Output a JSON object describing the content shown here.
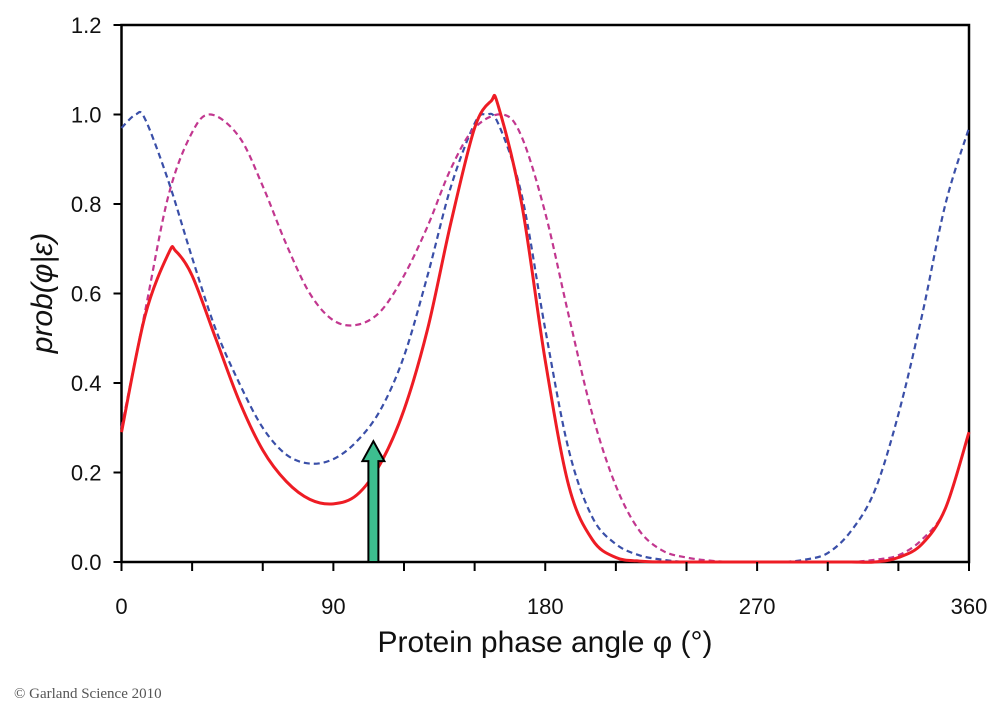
{
  "chart_data": {
    "type": "line",
    "xlabel": "Protein phase angle φ (°)",
    "ylabel": "prob(φ|ε)",
    "xlim": [
      0,
      360
    ],
    "ylim": [
      0,
      1.2
    ],
    "x_ticks": [
      "0",
      "90",
      "180",
      "270",
      "360"
    ],
    "x_minor_step": 30,
    "y_ticks": [
      "0.0",
      "0.2",
      "0.4",
      "0.6",
      "0.8",
      "1.0",
      "1.2"
    ],
    "grid": false,
    "series": [
      {
        "style": "dashed",
        "color": "#3a4fa8",
        "points": [
          [
            0,
            0.97
          ],
          [
            6,
            1.0
          ],
          [
            10,
            0.99
          ],
          [
            20,
            0.85
          ],
          [
            30,
            0.68
          ],
          [
            40,
            0.52
          ],
          [
            50,
            0.4
          ],
          [
            60,
            0.3
          ],
          [
            70,
            0.24
          ],
          [
            80,
            0.22
          ],
          [
            90,
            0.23
          ],
          [
            100,
            0.27
          ],
          [
            110,
            0.34
          ],
          [
            120,
            0.46
          ],
          [
            130,
            0.64
          ],
          [
            140,
            0.84
          ],
          [
            150,
            0.98
          ],
          [
            155,
            1.0
          ],
          [
            160,
            0.98
          ],
          [
            170,
            0.82
          ],
          [
            180,
            0.52
          ],
          [
            190,
            0.25
          ],
          [
            200,
            0.1
          ],
          [
            210,
            0.04
          ],
          [
            220,
            0.015
          ],
          [
            230,
            0.005
          ],
          [
            240,
            0
          ],
          [
            250,
            0
          ],
          [
            260,
            0
          ],
          [
            270,
            0
          ],
          [
            280,
            0
          ],
          [
            290,
            0.005
          ],
          [
            300,
            0.02
          ],
          [
            310,
            0.07
          ],
          [
            320,
            0.16
          ],
          [
            330,
            0.33
          ],
          [
            340,
            0.55
          ],
          [
            350,
            0.8
          ],
          [
            360,
            0.97
          ]
        ]
      },
      {
        "style": "dashed",
        "color": "#c2378f",
        "points": [
          [
            0,
            0.3
          ],
          [
            10,
            0.56
          ],
          [
            20,
            0.82
          ],
          [
            30,
            0.96
          ],
          [
            38,
            1.0
          ],
          [
            50,
            0.95
          ],
          [
            60,
            0.84
          ],
          [
            70,
            0.71
          ],
          [
            80,
            0.6
          ],
          [
            90,
            0.54
          ],
          [
            100,
            0.53
          ],
          [
            110,
            0.56
          ],
          [
            120,
            0.64
          ],
          [
            130,
            0.75
          ],
          [
            140,
            0.88
          ],
          [
            150,
            0.97
          ],
          [
            162,
            1.0
          ],
          [
            170,
            0.95
          ],
          [
            180,
            0.78
          ],
          [
            190,
            0.55
          ],
          [
            200,
            0.33
          ],
          [
            210,
            0.17
          ],
          [
            220,
            0.07
          ],
          [
            230,
            0.025
          ],
          [
            240,
            0.01
          ],
          [
            250,
            0.003
          ],
          [
            260,
            0
          ],
          [
            270,
            0
          ],
          [
            280,
            0
          ],
          [
            290,
            0
          ],
          [
            300,
            0
          ],
          [
            310,
            0
          ],
          [
            320,
            0.005
          ],
          [
            330,
            0.015
          ],
          [
            340,
            0.05
          ],
          [
            350,
            0.12
          ],
          [
            360,
            0.29
          ]
        ]
      },
      {
        "style": "solid",
        "color": "#ee1c24",
        "points": [
          [
            0,
            0.29
          ],
          [
            10,
            0.55
          ],
          [
            20,
            0.69
          ],
          [
            23,
            0.695
          ],
          [
            30,
            0.64
          ],
          [
            40,
            0.5
          ],
          [
            50,
            0.36
          ],
          [
            60,
            0.25
          ],
          [
            70,
            0.18
          ],
          [
            80,
            0.14
          ],
          [
            90,
            0.13
          ],
          [
            100,
            0.15
          ],
          [
            110,
            0.22
          ],
          [
            120,
            0.34
          ],
          [
            130,
            0.52
          ],
          [
            140,
            0.76
          ],
          [
            150,
            0.97
          ],
          [
            157,
            1.03
          ],
          [
            160,
            1.02
          ],
          [
            170,
            0.8
          ],
          [
            180,
            0.45
          ],
          [
            190,
            0.17
          ],
          [
            200,
            0.05
          ],
          [
            210,
            0.01
          ],
          [
            220,
            0.002
          ],
          [
            230,
            0
          ],
          [
            240,
            0
          ],
          [
            250,
            0
          ],
          [
            260,
            0
          ],
          [
            270,
            0
          ],
          [
            280,
            0
          ],
          [
            290,
            0
          ],
          [
            300,
            0
          ],
          [
            310,
            0
          ],
          [
            320,
            0
          ],
          [
            330,
            0.01
          ],
          [
            340,
            0.04
          ],
          [
            350,
            0.12
          ],
          [
            360,
            0.29
          ]
        ]
      }
    ],
    "annotations": [
      {
        "type": "arrow",
        "x": 107,
        "y_from": 0,
        "y_to": 0.27,
        "color": "#3dbf8f"
      }
    ]
  },
  "footer": {
    "copyright": "© Garland Science 2010"
  }
}
